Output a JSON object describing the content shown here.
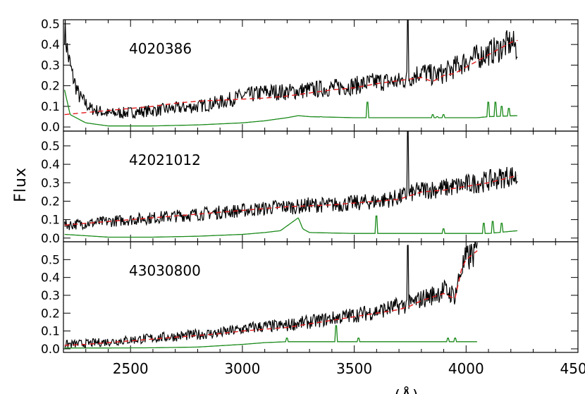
{
  "chart_data": {
    "type": "line",
    "ylabel": "Flux",
    "xlabel": "(Å)",
    "xlim": [
      2200,
      4500
    ],
    "x_ticks": [
      "2500",
      "3000",
      "3500",
      "4000",
      "4500"
    ],
    "colors": {
      "observed": "#000000",
      "model": "#e41a1c",
      "error": "#1a8a1a"
    },
    "panels": [
      {
        "id": "4020386",
        "ylim": [
          -0.02,
          0.52
        ],
        "y_ticks": [
          "0.0",
          "0.1",
          "0.2",
          "0.3",
          "0.4",
          "0.5"
        ],
        "observed_points": [
          [
            2205,
            0.48
          ],
          [
            2220,
            0.35
          ],
          [
            2240,
            0.25
          ],
          [
            2270,
            0.15
          ],
          [
            2320,
            0.09
          ],
          [
            2400,
            0.065
          ],
          [
            2500,
            0.07
          ],
          [
            2600,
            0.08
          ],
          [
            2700,
            0.09
          ],
          [
            2800,
            0.1
          ],
          [
            2900,
            0.12
          ],
          [
            3000,
            0.15
          ],
          [
            3060,
            0.16
          ],
          [
            3100,
            0.17
          ],
          [
            3200,
            0.17
          ],
          [
            3300,
            0.18
          ],
          [
            3400,
            0.19
          ],
          [
            3500,
            0.2
          ],
          [
            3600,
            0.22
          ],
          [
            3700,
            0.22
          ],
          [
            3750,
            0.24
          ],
          [
            3800,
            0.27
          ],
          [
            3850,
            0.25
          ],
          [
            3900,
            0.26
          ],
          [
            3950,
            0.29
          ],
          [
            4000,
            0.32
          ],
          [
            4050,
            0.34
          ],
          [
            4100,
            0.36
          ],
          [
            4150,
            0.38
          ],
          [
            4200,
            0.41
          ],
          [
            4230,
            0.38
          ]
        ],
        "model_points": [
          [
            2205,
            0.06
          ],
          [
            2300,
            0.07
          ],
          [
            2400,
            0.08
          ],
          [
            2500,
            0.09
          ],
          [
            2600,
            0.1
          ],
          [
            2700,
            0.115
          ],
          [
            2800,
            0.125
          ],
          [
            2900,
            0.13
          ],
          [
            3000,
            0.135
          ],
          [
            3100,
            0.14
          ],
          [
            3200,
            0.15
          ],
          [
            3300,
            0.165
          ],
          [
            3400,
            0.18
          ],
          [
            3500,
            0.19
          ],
          [
            3600,
            0.21
          ],
          [
            3700,
            0.225
          ],
          [
            3800,
            0.24
          ],
          [
            3850,
            0.22
          ],
          [
            3900,
            0.25
          ],
          [
            3950,
            0.26
          ],
          [
            4000,
            0.29
          ],
          [
            4050,
            0.32
          ],
          [
            4100,
            0.35
          ],
          [
            4150,
            0.38
          ],
          [
            4200,
            0.41
          ],
          [
            4230,
            0.42
          ]
        ],
        "error_points": [
          [
            2205,
            0.18
          ],
          [
            2230,
            0.06
          ],
          [
            2300,
            0.02
          ],
          [
            2400,
            0.005
          ],
          [
            2600,
            0.005
          ],
          [
            2800,
            0.01
          ],
          [
            3000,
            0.02
          ],
          [
            3100,
            0.03
          ],
          [
            3200,
            0.045
          ],
          [
            3250,
            0.055
          ],
          [
            3300,
            0.05
          ],
          [
            3500,
            0.045
          ],
          [
            3700,
            0.045
          ],
          [
            3900,
            0.045
          ],
          [
            4050,
            0.045
          ],
          [
            4100,
            0.05
          ],
          [
            4230,
            0.055
          ]
        ],
        "observed_spikes": [
          [
            3740,
            0.52
          ]
        ],
        "error_spikes": [
          [
            3350,
            0.05
          ],
          [
            3560,
            0.12
          ],
          [
            3850,
            0.06
          ],
          [
            3870,
            0.05
          ],
          [
            3900,
            0.06
          ],
          [
            4100,
            0.12
          ],
          [
            4130,
            0.12
          ],
          [
            4160,
            0.1
          ],
          [
            4190,
            0.09
          ]
        ]
      },
      {
        "id": "42021012",
        "ylim": [
          -0.02,
          0.58
        ],
        "y_ticks": [
          "0.0",
          "0.1",
          "0.2",
          "0.3",
          "0.4",
          "0.5"
        ],
        "observed_points": [
          [
            2205,
            0.07
          ],
          [
            2300,
            0.08
          ],
          [
            2400,
            0.09
          ],
          [
            2500,
            0.1
          ],
          [
            2600,
            0.11
          ],
          [
            2700,
            0.12
          ],
          [
            2800,
            0.13
          ],
          [
            2900,
            0.14
          ],
          [
            3000,
            0.15
          ],
          [
            3100,
            0.16
          ],
          [
            3150,
            0.17
          ],
          [
            3200,
            0.17
          ],
          [
            3250,
            0.17
          ],
          [
            3300,
            0.18
          ],
          [
            3400,
            0.18
          ],
          [
            3500,
            0.19
          ],
          [
            3600,
            0.2
          ],
          [
            3700,
            0.22
          ],
          [
            3750,
            0.24
          ],
          [
            3800,
            0.26
          ],
          [
            3900,
            0.27
          ],
          [
            4000,
            0.29
          ],
          [
            4100,
            0.31
          ],
          [
            4200,
            0.34
          ],
          [
            4230,
            0.32
          ]
        ],
        "model_points": [
          [
            2205,
            0.07
          ],
          [
            2300,
            0.08
          ],
          [
            2400,
            0.09
          ],
          [
            2500,
            0.1
          ],
          [
            2600,
            0.11
          ],
          [
            2700,
            0.12
          ],
          [
            2800,
            0.13
          ],
          [
            2900,
            0.14
          ],
          [
            3000,
            0.15
          ],
          [
            3100,
            0.16
          ],
          [
            3200,
            0.17
          ],
          [
            3300,
            0.175
          ],
          [
            3400,
            0.18
          ],
          [
            3500,
            0.19
          ],
          [
            3600,
            0.2
          ],
          [
            3700,
            0.21
          ],
          [
            3750,
            0.23
          ],
          [
            3800,
            0.25
          ],
          [
            3900,
            0.26
          ],
          [
            4000,
            0.28
          ],
          [
            4100,
            0.3
          ],
          [
            4200,
            0.33
          ],
          [
            4230,
            0.34
          ]
        ],
        "error_points": [
          [
            2205,
            0.02
          ],
          [
            2400,
            0.005
          ],
          [
            2600,
            0.005
          ],
          [
            2800,
            0.01
          ],
          [
            3000,
            0.02
          ],
          [
            3100,
            0.03
          ],
          [
            3170,
            0.04
          ],
          [
            3250,
            0.11
          ],
          [
            3270,
            0.05
          ],
          [
            3300,
            0.03
          ],
          [
            3500,
            0.025
          ],
          [
            3700,
            0.025
          ],
          [
            3900,
            0.025
          ],
          [
            4100,
            0.025
          ],
          [
            4230,
            0.04
          ]
        ],
        "observed_spikes": [
          [
            3740,
            0.58
          ]
        ],
        "error_spikes": [
          [
            3600,
            0.12
          ],
          [
            3900,
            0.05
          ],
          [
            4080,
            0.08
          ],
          [
            4120,
            0.09
          ],
          [
            4160,
            0.08
          ]
        ]
      },
      {
        "id": "43030800",
        "ylim": [
          -0.02,
          0.6
        ],
        "y_ticks": [
          "0.0",
          "0.1",
          "0.2",
          "0.3",
          "0.4",
          "0.5"
        ],
        "observed_points": [
          [
            2205,
            0.025
          ],
          [
            2300,
            0.03
          ],
          [
            2400,
            0.04
          ],
          [
            2500,
            0.05
          ],
          [
            2600,
            0.06
          ],
          [
            2700,
            0.07
          ],
          [
            2800,
            0.08
          ],
          [
            2900,
            0.09
          ],
          [
            3000,
            0.11
          ],
          [
            3050,
            0.12
          ],
          [
            3100,
            0.125
          ],
          [
            3200,
            0.13
          ],
          [
            3220,
            0.14
          ],
          [
            3300,
            0.15
          ],
          [
            3400,
            0.17
          ],
          [
            3500,
            0.19
          ],
          [
            3600,
            0.21
          ],
          [
            3700,
            0.24
          ],
          [
            3750,
            0.25
          ],
          [
            3800,
            0.28
          ],
          [
            3850,
            0.3
          ],
          [
            3900,
            0.33
          ],
          [
            3950,
            0.3
          ],
          [
            3980,
            0.45
          ],
          [
            4000,
            0.5
          ],
          [
            4050,
            0.55
          ]
        ],
        "model_points": [
          [
            2205,
            0.02
          ],
          [
            2300,
            0.025
          ],
          [
            2400,
            0.035
          ],
          [
            2500,
            0.045
          ],
          [
            2600,
            0.055
          ],
          [
            2700,
            0.065
          ],
          [
            2800,
            0.075
          ],
          [
            2900,
            0.085
          ],
          [
            3000,
            0.1
          ],
          [
            3100,
            0.11
          ],
          [
            3200,
            0.12
          ],
          [
            3300,
            0.14
          ],
          [
            3400,
            0.16
          ],
          [
            3500,
            0.18
          ],
          [
            3600,
            0.2
          ],
          [
            3700,
            0.22
          ],
          [
            3750,
            0.24
          ],
          [
            3800,
            0.27
          ],
          [
            3850,
            0.29
          ],
          [
            3900,
            0.31
          ],
          [
            3950,
            0.28
          ],
          [
            3980,
            0.45
          ],
          [
            4000,
            0.5
          ],
          [
            4050,
            0.55
          ]
        ],
        "error_points": [
          [
            2205,
            0.005
          ],
          [
            2400,
            0.005
          ],
          [
            2600,
            0.006
          ],
          [
            2800,
            0.01
          ],
          [
            3000,
            0.025
          ],
          [
            3100,
            0.035
          ],
          [
            3200,
            0.04
          ],
          [
            3400,
            0.04
          ],
          [
            3600,
            0.04
          ],
          [
            3800,
            0.04
          ],
          [
            4000,
            0.04
          ],
          [
            4050,
            0.04
          ]
        ],
        "observed_spikes": [
          [
            3740,
            0.58
          ]
        ],
        "error_spikes": [
          [
            3200,
            0.06
          ],
          [
            3420,
            0.13
          ],
          [
            3520,
            0.06
          ],
          [
            3920,
            0.06
          ],
          [
            3950,
            0.06
          ]
        ]
      }
    ]
  }
}
